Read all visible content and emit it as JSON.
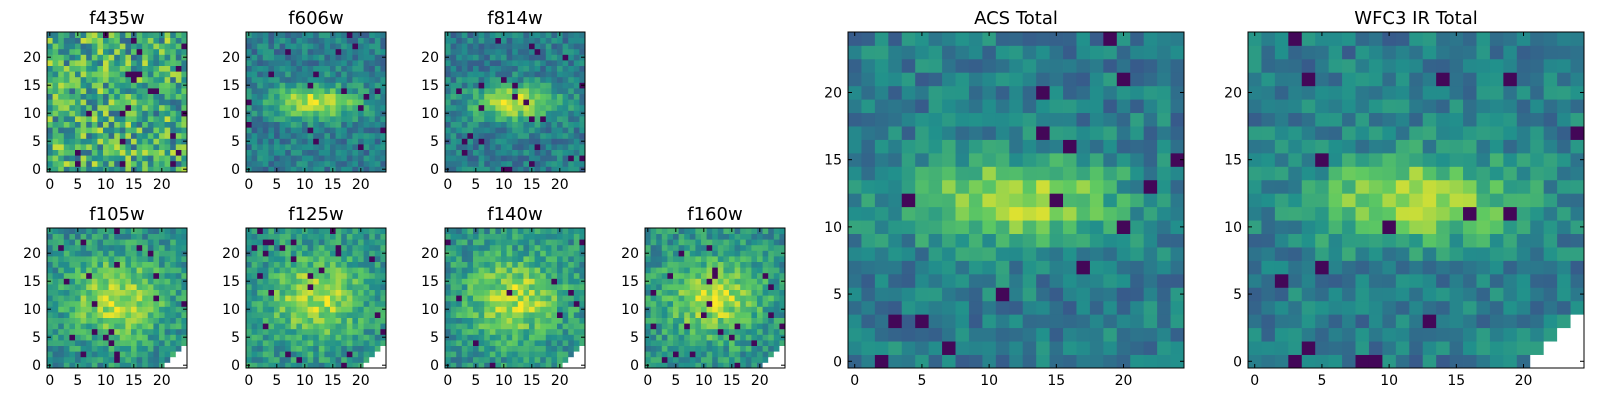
{
  "chart_data": [
    {
      "type": "heatmap",
      "title": "f435w",
      "colormap": "viridis",
      "grid": false,
      "xlim": [
        0,
        24
      ],
      "ylim": [
        0,
        24
      ],
      "xticks": [
        0,
        5,
        10,
        15,
        20
      ],
      "yticks": [
        0,
        5,
        10,
        15,
        20
      ],
      "feature": "none",
      "note_values": "pixel intensities estimated; visually noisy, no clear source"
    },
    {
      "type": "heatmap",
      "title": "f606w",
      "colormap": "viridis",
      "grid": false,
      "xlim": [
        0,
        24
      ],
      "ylim": [
        0,
        24
      ],
      "xticks": [
        0,
        5,
        10,
        15,
        20
      ],
      "yticks": [
        0,
        5,
        10,
        15,
        20
      ],
      "feature": "elongated"
    },
    {
      "type": "heatmap",
      "title": "f814w",
      "colormap": "viridis",
      "grid": false,
      "xlim": [
        0,
        24
      ],
      "ylim": [
        0,
        24
      ],
      "xticks": [
        0,
        5,
        10,
        15,
        20
      ],
      "yticks": [
        0,
        5,
        10,
        15,
        20
      ],
      "feature": "elongated"
    },
    {
      "type": "heatmap",
      "title": "f105w",
      "colormap": "viridis",
      "grid": false,
      "xlim": [
        0,
        24
      ],
      "ylim": [
        0,
        24
      ],
      "xticks": [
        0,
        5,
        10,
        15,
        20
      ],
      "yticks": [
        0,
        5,
        10,
        15,
        20
      ],
      "feature": "broad",
      "masked_corner": true
    },
    {
      "type": "heatmap",
      "title": "f125w",
      "colormap": "viridis",
      "grid": false,
      "xlim": [
        0,
        24
      ],
      "ylim": [
        0,
        24
      ],
      "xticks": [
        0,
        5,
        10,
        15,
        20
      ],
      "yticks": [
        0,
        5,
        10,
        15,
        20
      ],
      "feature": "broad",
      "masked_corner": true
    },
    {
      "type": "heatmap",
      "title": "f140w",
      "colormap": "viridis",
      "grid": false,
      "xlim": [
        0,
        24
      ],
      "ylim": [
        0,
        24
      ],
      "xticks": [
        0,
        5,
        10,
        15,
        20
      ],
      "yticks": [
        0,
        5,
        10,
        15,
        20
      ],
      "feature": "broad",
      "masked_corner": true
    },
    {
      "type": "heatmap",
      "title": "f160w",
      "colormap": "viridis",
      "grid": false,
      "xlim": [
        0,
        24
      ],
      "ylim": [
        0,
        24
      ],
      "xticks": [
        0,
        5,
        10,
        15,
        20
      ],
      "yticks": [
        0,
        5,
        10,
        15,
        20
      ],
      "feature": "broad",
      "masked_corner": true
    },
    {
      "type": "heatmap",
      "title": "ACS Total",
      "colormap": "viridis",
      "grid": false,
      "xlim": [
        0,
        24
      ],
      "ylim": [
        0,
        24
      ],
      "xticks": [
        0,
        5,
        10,
        15,
        20
      ],
      "yticks": [
        0,
        5,
        10,
        15,
        20
      ],
      "feature": "elongated"
    },
    {
      "type": "heatmap",
      "title": "WFC3 IR Total",
      "colormap": "viridis",
      "grid": false,
      "xlim": [
        0,
        24
      ],
      "ylim": [
        0,
        24
      ],
      "xticks": [
        0,
        5,
        10,
        15,
        20
      ],
      "yticks": [
        0,
        5,
        10,
        15,
        20
      ],
      "feature": "elongated",
      "masked_corner": true
    }
  ],
  "colors": {
    "viridis": [
      "#440154",
      "#3b528b",
      "#21918c",
      "#5ec962",
      "#fde725"
    ],
    "masked": "#ffffff",
    "axis": "#000000"
  }
}
